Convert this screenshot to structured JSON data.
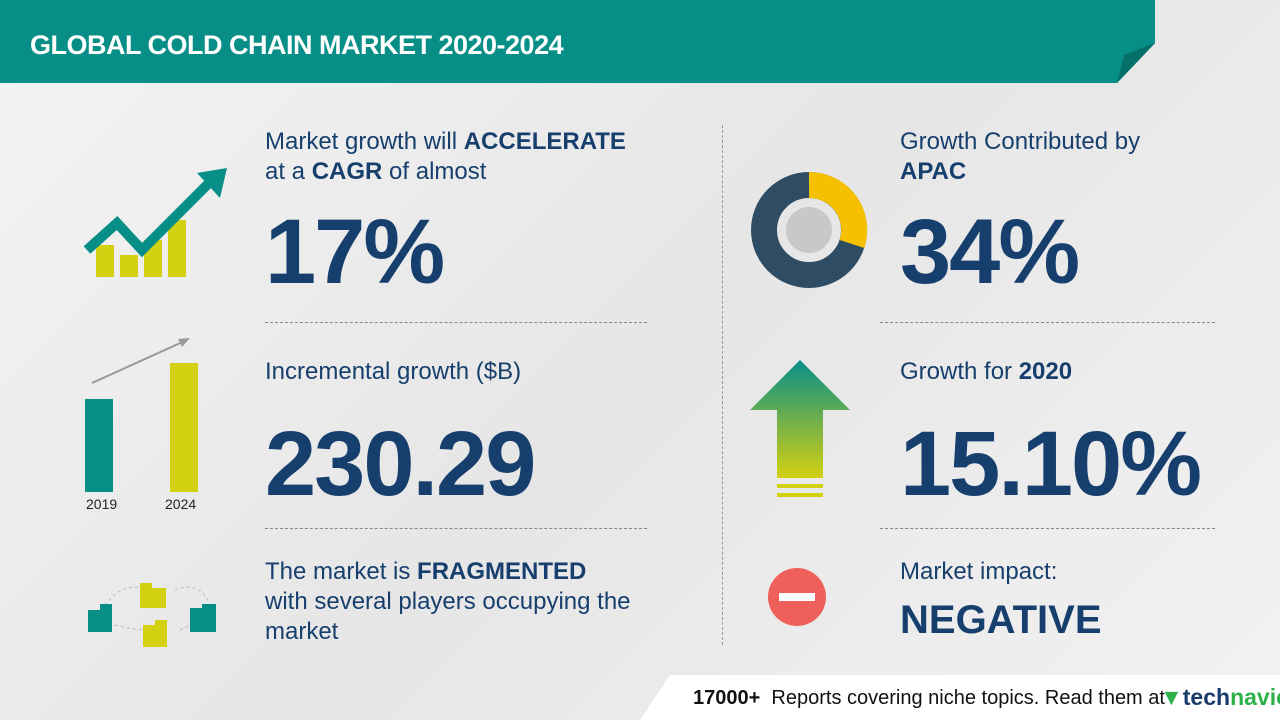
{
  "header": {
    "title": "GLOBAL COLD CHAIN MARKET 2020-2024"
  },
  "cagr": {
    "line1_pre": "Market growth will ",
    "line1_bold": "ACCELERATE",
    "line2_pre": "at a ",
    "line2_bold": "CAGR",
    "line2_post": " of almost",
    "value": "17%"
  },
  "incremental": {
    "label": "Incremental growth ($B)",
    "value": "230.29",
    "bar_labels": [
      "2019",
      "2024"
    ]
  },
  "fragmented": {
    "pre": "The market is ",
    "bold": "FRAGMENTED",
    "line2": "with several players occupying the",
    "line3": "market"
  },
  "apac": {
    "label": "Growth Contributed by",
    "region": "APAC",
    "value": "34%"
  },
  "yoy": {
    "label_pre": "Growth for ",
    "year": "2020",
    "value": "15.10%"
  },
  "impact": {
    "label": "Market impact:",
    "value": "NEGATIVE"
  },
  "footer": {
    "count": "17000+",
    "text": "Reports covering niche topics. Read them at",
    "logo_a": "tech",
    "logo_b": "navio"
  },
  "colors": {
    "teal": "#078f87",
    "navy": "#173f6e",
    "yellow": "#d4d012",
    "red": "#f0605a"
  }
}
